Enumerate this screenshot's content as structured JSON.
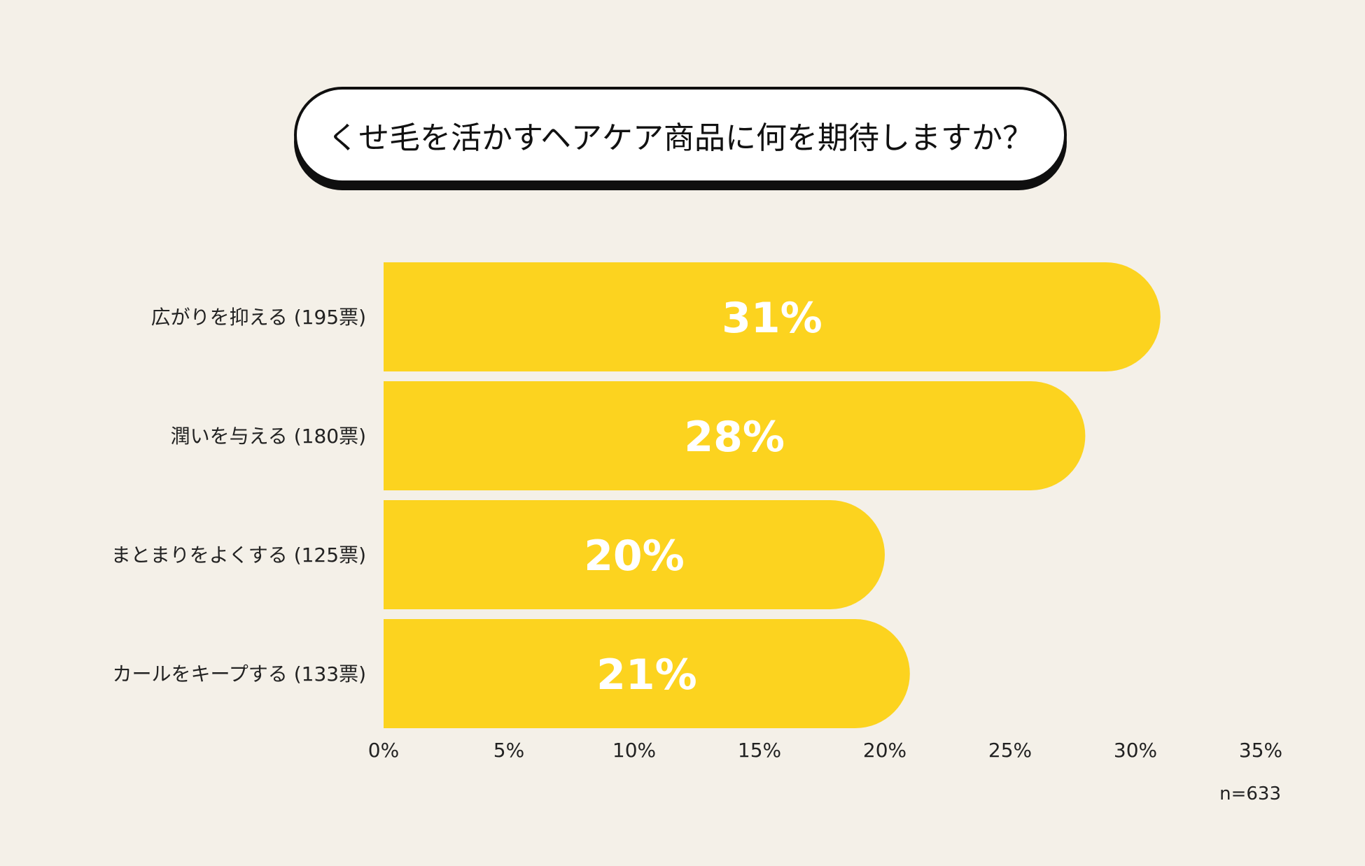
{
  "title": "くせ毛を活かすヘアケア商品に何を期待しますか？",
  "colors": {
    "background": "#f4f0e8",
    "bar": "#fcd31f",
    "bar_label": "#ffffff",
    "text": "#222222"
  },
  "chart_data": {
    "type": "bar",
    "orientation": "horizontal",
    "title": "",
    "categories": [
      "広がりを抑える (195票)",
      "潤いを与える (180票)",
      "まとまりをよくする (125票)",
      "カールをキープする (133票)"
    ],
    "values": [
      31,
      28,
      20,
      21
    ],
    "value_labels": [
      "31%",
      "28%",
      "20%",
      "21%"
    ],
    "xlim": [
      0,
      35
    ],
    "x_ticks": [
      0,
      5,
      10,
      15,
      20,
      25,
      30,
      35
    ],
    "x_tick_labels": [
      "0%",
      "5%",
      "10%",
      "15%",
      "20%",
      "25%",
      "30%",
      "35%"
    ],
    "grid": false,
    "legend": "none",
    "note": "n=633"
  }
}
